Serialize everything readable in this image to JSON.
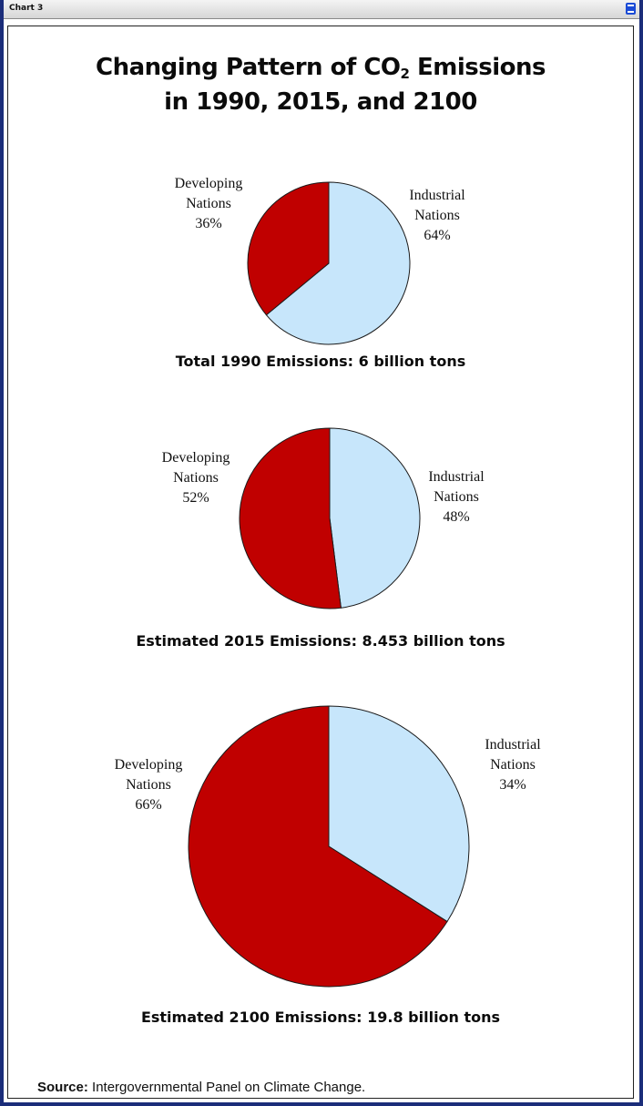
{
  "window": {
    "title": "Chart 3"
  },
  "colors": {
    "developing": "#c00000",
    "industrial": "#c7e6fb"
  },
  "chart_data": {
    "title_line1": "Changing Pattern of CO",
    "title_sub": "2",
    "title_line1_end": " Emissions",
    "title_line2": "in 1990, 2015, and 2100",
    "source_label": "Source:",
    "source_text": " Intergovernmental Panel on Climate Change.",
    "pies": [
      {
        "type": "pie",
        "total_label": "Total 1990 Emissions: 6 billion tons",
        "slices": [
          {
            "name_line1": "Industrial",
            "name_line2": "Nations",
            "pct_label": "64%",
            "value": 64,
            "color": "#c7e6fb"
          },
          {
            "name_line1": "Developing",
            "name_line2": "Nations",
            "pct_label": "36%",
            "value": 36,
            "color": "#c00000"
          }
        ]
      },
      {
        "type": "pie",
        "total_label": "Estimated 2015 Emissions: 8.453 billion tons",
        "slices": [
          {
            "name_line1": "Industrial",
            "name_line2": "Nations",
            "pct_label": "48%",
            "value": 48,
            "color": "#c7e6fb"
          },
          {
            "name_line1": "Developing",
            "name_line2": "Nations",
            "pct_label": "52%",
            "value": 52,
            "color": "#c00000"
          }
        ]
      },
      {
        "type": "pie",
        "total_label": "Estimated 2100 Emissions: 19.8 billion tons",
        "slices": [
          {
            "name_line1": "Industrial",
            "name_line2": "Nations",
            "pct_label": "34%",
            "value": 34,
            "color": "#c7e6fb"
          },
          {
            "name_line1": "Developing",
            "name_line2": "Nations",
            "pct_label": "66%",
            "value": 66,
            "color": "#c00000"
          }
        ]
      }
    ]
  }
}
